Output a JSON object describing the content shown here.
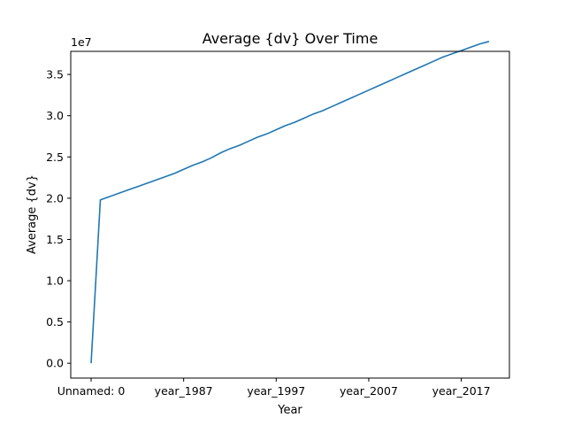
{
  "chart_data": {
    "type": "line",
    "title": "Average {dv} Over Time",
    "xlabel": "Year",
    "ylabel": "Average {dv}",
    "y_offset_label": "1e7",
    "x_tick_labels": [
      "Unnamed: 0",
      "year_1987",
      "year_1997",
      "year_2007",
      "year_2017"
    ],
    "x_tick_positions": [
      0,
      10,
      20,
      30,
      40
    ],
    "y_ticks": [
      0.0,
      0.5,
      1.0,
      1.5,
      2.0,
      2.5,
      3.0,
      3.5
    ],
    "y_tick_labels": [
      "0.0",
      "0.5",
      "1.0",
      "1.5",
      "2.0",
      "2.5",
      "3.0",
      "3.5"
    ],
    "xlim": [
      -2.2,
      45.2
    ],
    "ylim": [
      -0.18,
      3.78
    ],
    "grid": false,
    "line_color": "#1f77b4",
    "series": [
      {
        "x": [
          0,
          1,
          2,
          3,
          4,
          5,
          6,
          7,
          8,
          9,
          10,
          11,
          12,
          13,
          14,
          15,
          16,
          17,
          18,
          19,
          20,
          21,
          22,
          23,
          24,
          25,
          26,
          27,
          28,
          29,
          30,
          31,
          32,
          33,
          34,
          35,
          36,
          37,
          38,
          39,
          40,
          41,
          42,
          43
        ],
        "values": [
          0.0,
          1.98,
          2.02,
          2.06,
          2.1,
          2.14,
          2.18,
          2.22,
          2.26,
          2.3,
          2.35,
          2.4,
          2.44,
          2.49,
          2.55,
          2.6,
          2.64,
          2.69,
          2.74,
          2.78,
          2.83,
          2.88,
          2.92,
          2.97,
          3.02,
          3.06,
          3.11,
          3.16,
          3.21,
          3.26,
          3.31,
          3.36,
          3.41,
          3.46,
          3.51,
          3.56,
          3.61,
          3.66,
          3.71,
          3.75,
          3.79,
          3.83,
          3.87,
          3.9
        ]
      }
    ]
  }
}
